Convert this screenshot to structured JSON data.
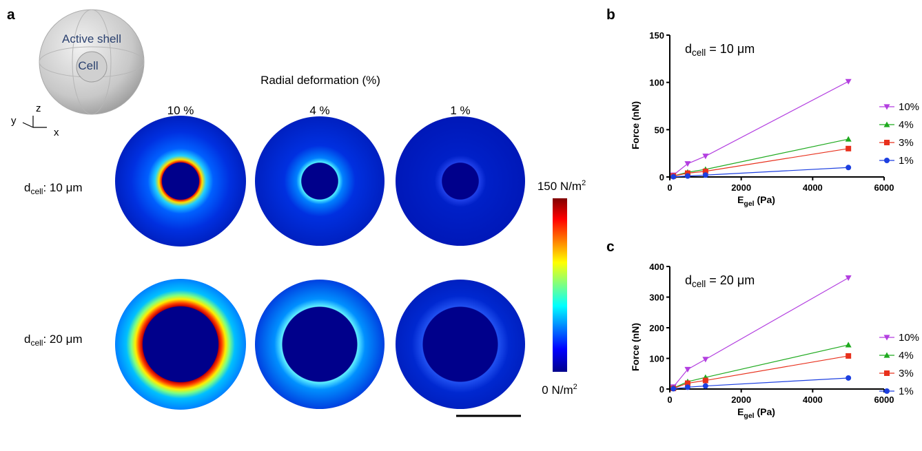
{
  "panel_a": {
    "label": "a",
    "sphere_labels": [
      "Active shell",
      "Cell"
    ],
    "axes": [
      "z",
      "y",
      "x"
    ],
    "column_title": "Radial deformation (%)",
    "columns": [
      "10 %",
      "4 %",
      "1 %"
    ],
    "rows": [
      {
        "main": "d",
        "sub": "cell",
        "rest": ": 10 μm"
      },
      {
        "main": "d",
        "sub": "cell",
        "rest": ": 20 μm"
      }
    ],
    "colorbar": {
      "max": {
        "main": "150 N/m",
        "sup": "2"
      },
      "min": {
        "main": "0 N/m",
        "sup": "2"
      }
    }
  },
  "chart_data": [
    {
      "type": "line",
      "label": "b",
      "annotation": {
        "main": "d",
        "sub": "cell",
        "rest": " = 10 μm"
      },
      "x_label": {
        "main": "E",
        "sub": "gel",
        "rest": " (Pa)"
      },
      "y_label": "Force (nN)",
      "x": [
        100,
        500,
        1000,
        5000
      ],
      "xlim": [
        0,
        6000
      ],
      "xticks": [
        0,
        2000,
        4000,
        6000
      ],
      "ylim": [
        0,
        150
      ],
      "yticks": [
        0,
        50,
        100,
        150
      ],
      "series": [
        {
          "name": "10%",
          "color": "#b33fe0",
          "marker": "triangle-down",
          "values": [
            2,
            14,
            22,
            101
          ]
        },
        {
          "name": "4%",
          "color": "#1faa1f",
          "marker": "triangle-up",
          "values": [
            1,
            5,
            8,
            40
          ]
        },
        {
          "name": "3%",
          "color": "#e8301c",
          "marker": "square",
          "values": [
            1,
            4,
            6,
            30
          ]
        },
        {
          "name": "1%",
          "color": "#1c3fe0",
          "marker": "circle",
          "values": [
            0.2,
            1,
            2,
            10
          ]
        }
      ]
    },
    {
      "type": "line",
      "label": "c",
      "annotation": {
        "main": "d",
        "sub": "cell",
        "rest": " = 20 μm"
      },
      "x_label": {
        "main": "E",
        "sub": "gel",
        "rest": " (Pa)"
      },
      "y_label": "Force (nN)",
      "x": [
        100,
        500,
        1000,
        5000
      ],
      "xlim": [
        0,
        6000
      ],
      "xticks": [
        0,
        2000,
        4000,
        6000
      ],
      "ylim": [
        0,
        400
      ],
      "yticks": [
        0,
        100,
        200,
        300,
        400
      ],
      "series": [
        {
          "name": "10%",
          "color": "#b33fe0",
          "marker": "triangle-down",
          "values": [
            7,
            64,
            97,
            363
          ]
        },
        {
          "name": "4%",
          "color": "#1faa1f",
          "marker": "triangle-up",
          "values": [
            3,
            24,
            38,
            144
          ]
        },
        {
          "name": "3%",
          "color": "#e8301c",
          "marker": "square",
          "values": [
            2,
            19,
            28,
            108
          ]
        },
        {
          "name": "1%",
          "color": "#1c3fe0",
          "marker": "circle",
          "values": [
            1,
            6,
            10,
            36
          ]
        }
      ]
    }
  ]
}
